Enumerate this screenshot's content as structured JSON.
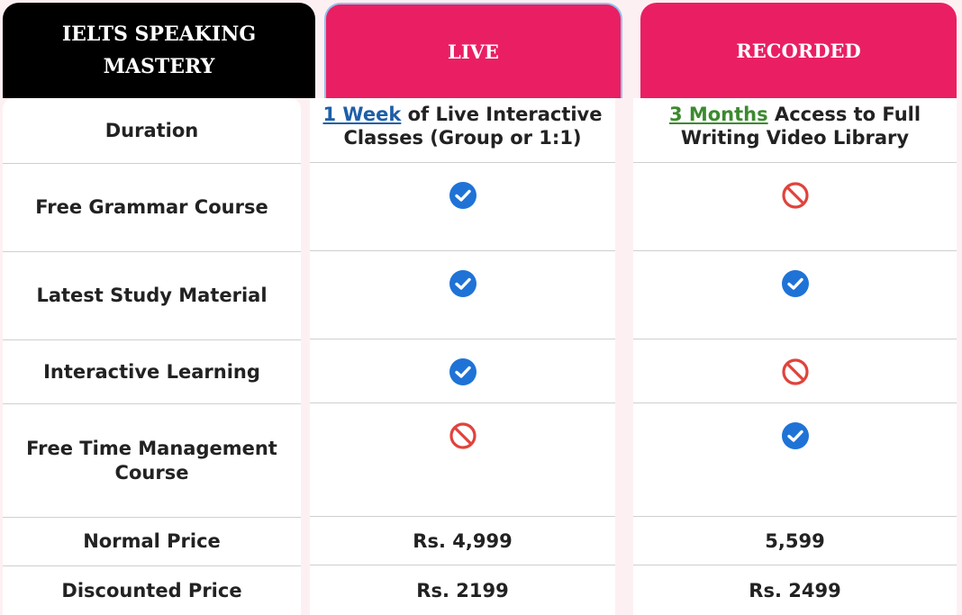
{
  "header": {
    "title_line1": "IELTS SPEAKING",
    "title_line2": "MASTERY",
    "live_label": "LIVE",
    "recorded_label": "RECORDED"
  },
  "rows": [
    {
      "label": "Duration"
    },
    {
      "label": "Free Grammar Course",
      "live": "check-icon",
      "recorded": "no-icon"
    },
    {
      "label": "Latest Study Material",
      "live": "check-icon",
      "recorded": "check-icon"
    },
    {
      "label": "Interactive Learning",
      "live": "check-icon",
      "recorded": "no-icon"
    },
    {
      "label": "Free Time Management Course",
      "live": "no-icon",
      "recorded": "check-icon"
    },
    {
      "label": "Normal Price",
      "live": "Rs. 4,999",
      "recorded": "5,599"
    },
    {
      "label": "Discounted Price",
      "live": "Rs. 2199",
      "recorded": "Rs. 2499"
    }
  ],
  "duration": {
    "live_highlight": "1 Week",
    "live_rest_line1": " of Live Interactive",
    "live_line2": "Classes (Group or 1:1)",
    "recorded_highlight": "3 Months",
    "recorded_rest_line1": " Access to Full",
    "recorded_line2": "Writing Video Library"
  },
  "colors": {
    "header_pink": "#ea1f63",
    "header_black": "#000000",
    "check_blue": "#1f73d6",
    "no_red": "#e0433c"
  }
}
